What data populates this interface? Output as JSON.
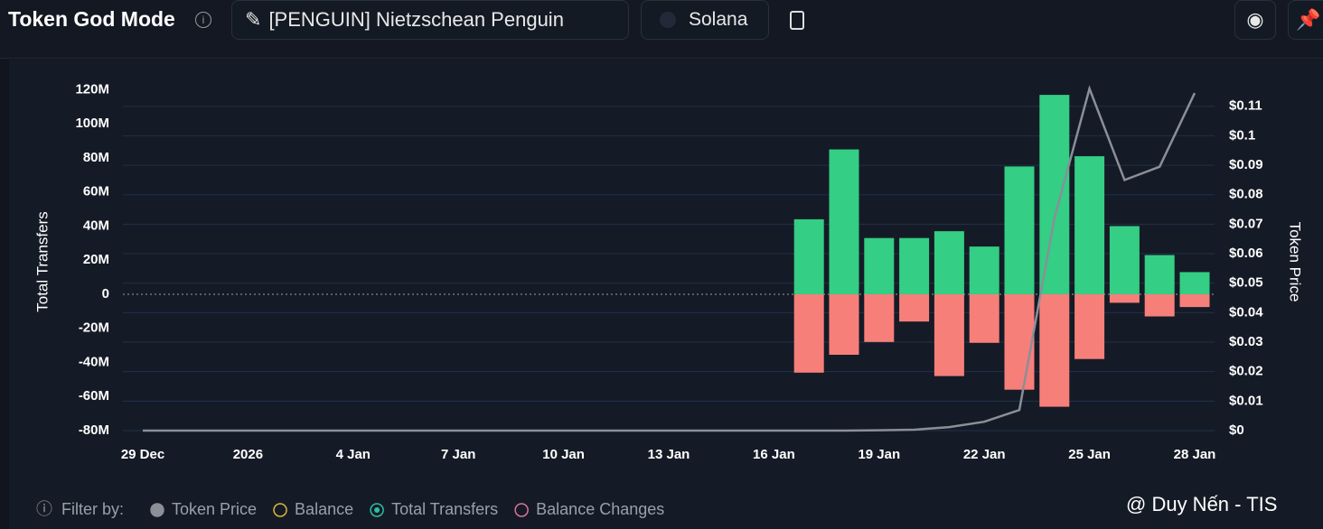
{
  "header": {
    "title": "Token God Mode",
    "token": "[PENGUIN] Nietzschean Penguin",
    "chain": "Solana"
  },
  "chart_data": {
    "type": "bar",
    "y_label": "Total Transfers",
    "y2_label": "Token Price",
    "categories": [
      "29 Dec",
      null,
      null,
      "2026",
      null,
      null,
      "4 Jan",
      null,
      null,
      "7 Jan",
      null,
      null,
      "10 Jan",
      null,
      null,
      "13 Jan",
      null,
      null,
      "16 Jan",
      null,
      null,
      "19 Jan",
      null,
      null,
      "22 Jan",
      null,
      null,
      "25 Jan",
      null,
      null,
      "28 Jan"
    ],
    "series": [
      {
        "color": "#34ce84",
        "values": [
          null,
          null,
          null,
          null,
          null,
          null,
          null,
          null,
          null,
          null,
          null,
          null,
          null,
          null,
          null,
          null,
          null,
          null,
          null,
          44000000,
          85000000,
          33000000,
          33000000,
          37000000,
          28000000,
          75000000,
          117000000,
          81000000,
          40000000,
          23000000,
          13000000
        ]
      },
      {
        "color": "#f77f7a",
        "values": [
          null,
          null,
          null,
          null,
          null,
          null,
          null,
          null,
          null,
          null,
          null,
          null,
          null,
          null,
          null,
          null,
          null,
          null,
          null,
          -46000000,
          -35500000,
          -28000000,
          -16000000,
          -48000000,
          -28500000,
          -56000000,
          -66000000,
          -38000000,
          -5000000,
          -13000000,
          -7500000
        ]
      },
      {
        "name": "Token Price",
        "type": "line",
        "axis": "y2",
        "color": "#8a8f98",
        "values": [
          0,
          0,
          0,
          0,
          0,
          0,
          0,
          0,
          0,
          0,
          0,
          0,
          0,
          0,
          0,
          0,
          0,
          0,
          0,
          0,
          0,
          0.0001,
          0.0003,
          0.0012,
          0.003,
          0.007,
          0.072,
          0.116,
          0.085,
          0.0895,
          0.1145
        ]
      }
    ],
    "ylim": [
      -80000000,
      125000000
    ],
    "yticks": [
      {
        "value": -80000000,
        "label": "-80M"
      },
      {
        "value": -60000000,
        "label": "-60M"
      },
      {
        "value": -40000000,
        "label": "-40M"
      },
      {
        "value": -20000000,
        "label": "-20M"
      },
      0,
      {
        "value": 20000000,
        "label": "20M"
      },
      {
        "value": 40000000,
        "label": "40M"
      },
      {
        "value": 60000000,
        "label": "60M"
      },
      {
        "value": 80000000,
        "label": "80M"
      },
      {
        "value": 100000000,
        "label": "100M"
      },
      {
        "value": 120000000,
        "label": "120M"
      }
    ],
    "y2lim": [
      0,
      0.1185
    ],
    "y2ticks": [
      {
        "value": 0,
        "label": "$0"
      },
      {
        "value": 0.01,
        "label": "$0.01"
      },
      {
        "value": 0.02,
        "label": "$0.02"
      },
      {
        "value": 0.03,
        "label": "$0.03"
      },
      {
        "value": 0.04,
        "label": "$0.04"
      },
      {
        "value": 0.05,
        "label": "$0.05"
      },
      {
        "value": 0.06,
        "label": "$0.06"
      },
      {
        "value": 0.07,
        "label": "$0.07"
      },
      {
        "value": 0.08,
        "label": "$0.08"
      },
      {
        "value": 0.09,
        "label": "$0.09"
      },
      {
        "value": 0.1,
        "label": "$0.1"
      },
      {
        "value": 0.11,
        "label": "$0.11"
      }
    ],
    "grid": true
  },
  "legend": {
    "title": "Filter by:",
    "items": [
      {
        "label": "Token Price",
        "color": "#8a8f98"
      },
      {
        "label": "Balance",
        "color": "#d9b73a"
      },
      {
        "label": "Total Transfers",
        "color": "#2bbfa4"
      },
      {
        "label": "Balance Changes",
        "color": "#d9739b"
      }
    ]
  },
  "watermark": "@ Duy Nến - TIS"
}
